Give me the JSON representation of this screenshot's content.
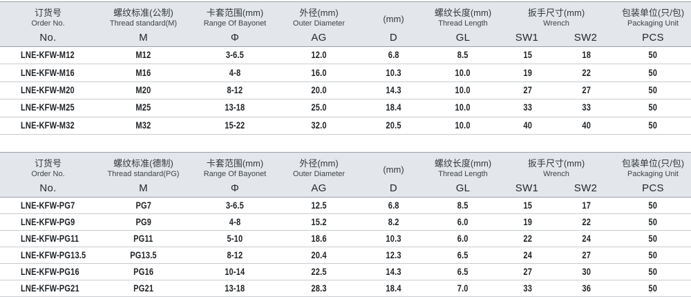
{
  "colors": {
    "header_bg": "#e3e6ea",
    "header_border": "#99a0a7",
    "row_border": "#c7cbcf"
  },
  "tables": [
    {
      "name": "metric-thread-table",
      "columns": [
        {
          "zh": "订货号",
          "en": "Order No.",
          "subs": [
            "No."
          ]
        },
        {
          "zh": "螺纹标准(公制)",
          "en": "Thread standard(M)",
          "subs": [
            "M"
          ]
        },
        {
          "zh": "卡套范围(mm)",
          "en": "Range Of Bayonet",
          "subs": [
            "Φ"
          ]
        },
        {
          "zh": "外径(mm)",
          "en": "Outer Diameter",
          "subs": [
            "AG"
          ]
        },
        {
          "zh": "(mm)",
          "en": "",
          "subs": [
            "D"
          ]
        },
        {
          "zh": "螺纹长度(mm)",
          "en": "Thread Length",
          "subs": [
            "GL"
          ]
        },
        {
          "zh": "扳手尺寸(mm)",
          "en": "Wrench",
          "subs": [
            "SW1",
            "SW2"
          ]
        },
        {
          "zh": "包装单位(只/包)",
          "en": "Packaging Unit",
          "subs": [
            "PCS"
          ]
        }
      ],
      "rows": [
        [
          "LNE-KFW-M12",
          "M12",
          "3-6.5",
          "12.0",
          "6.8",
          "8.5",
          "15",
          "18",
          "50"
        ],
        [
          "LNE-KFW-M16",
          "M16",
          "4-8",
          "16.0",
          "10.3",
          "10.0",
          "19",
          "22",
          "50"
        ],
        [
          "LNE-KFW-M20",
          "M20",
          "8-12",
          "20.0",
          "14.3",
          "10.0",
          "27",
          "27",
          "50"
        ],
        [
          "LNE-KFW-M25",
          "M25",
          "13-18",
          "25.0",
          "18.4",
          "10.0",
          "33",
          "33",
          "50"
        ],
        [
          "LNE-KFW-M32",
          "M32",
          "15-22",
          "32.0",
          "20.5",
          "10.0",
          "40",
          "40",
          "50"
        ]
      ]
    },
    {
      "name": "pg-thread-table",
      "columns": [
        {
          "zh": "订货号",
          "en": "Order No.",
          "subs": [
            "No."
          ]
        },
        {
          "zh": "螺纹标准(德制)",
          "en": "Thread standard(PG)",
          "subs": [
            "M"
          ]
        },
        {
          "zh": "卡套范围(mm)",
          "en": "Range Of Bayonet",
          "subs": [
            "Φ"
          ]
        },
        {
          "zh": "外径(mm)",
          "en": "Outer Diameter",
          "subs": [
            "AG"
          ]
        },
        {
          "zh": "(mm)",
          "en": "",
          "subs": [
            "D"
          ]
        },
        {
          "zh": "螺纹长度(mm)",
          "en": "Thread Length",
          "subs": [
            "GL"
          ]
        },
        {
          "zh": "扳手尺寸(mm)",
          "en": "Wrench",
          "subs": [
            "SW1",
            "SW2"
          ]
        },
        {
          "zh": "包装单位(只/包)",
          "en": "Packaging Unit",
          "subs": [
            "PCS"
          ]
        }
      ],
      "rows": [
        [
          "LNE-KFW-PG7",
          "PG7",
          "3-6.5",
          "12.5",
          "6.8",
          "8.5",
          "15",
          "17",
          "50"
        ],
        [
          "LNE-KFW-PG9",
          "PG9",
          "4-8",
          "15.2",
          "8.2",
          "6.0",
          "19",
          "22",
          "50"
        ],
        [
          "LNE-KFW-PG11",
          "PG11",
          "5-10",
          "18.6",
          "10.3",
          "6.0",
          "22",
          "24",
          "50"
        ],
        [
          "LNE-KFW-PG13.5",
          "PG13.5",
          "8-12",
          "20.4",
          "12.3",
          "6.5",
          "24",
          "27",
          "50"
        ],
        [
          "LNE-KFW-PG16",
          "PG16",
          "10-14",
          "22.5",
          "14.3",
          "6.5",
          "27",
          "30",
          "50"
        ],
        [
          "LNE-KFW-PG21",
          "PG21",
          "13-18",
          "28.3",
          "18.4",
          "7.0",
          "33",
          "36",
          "50"
        ]
      ]
    }
  ]
}
